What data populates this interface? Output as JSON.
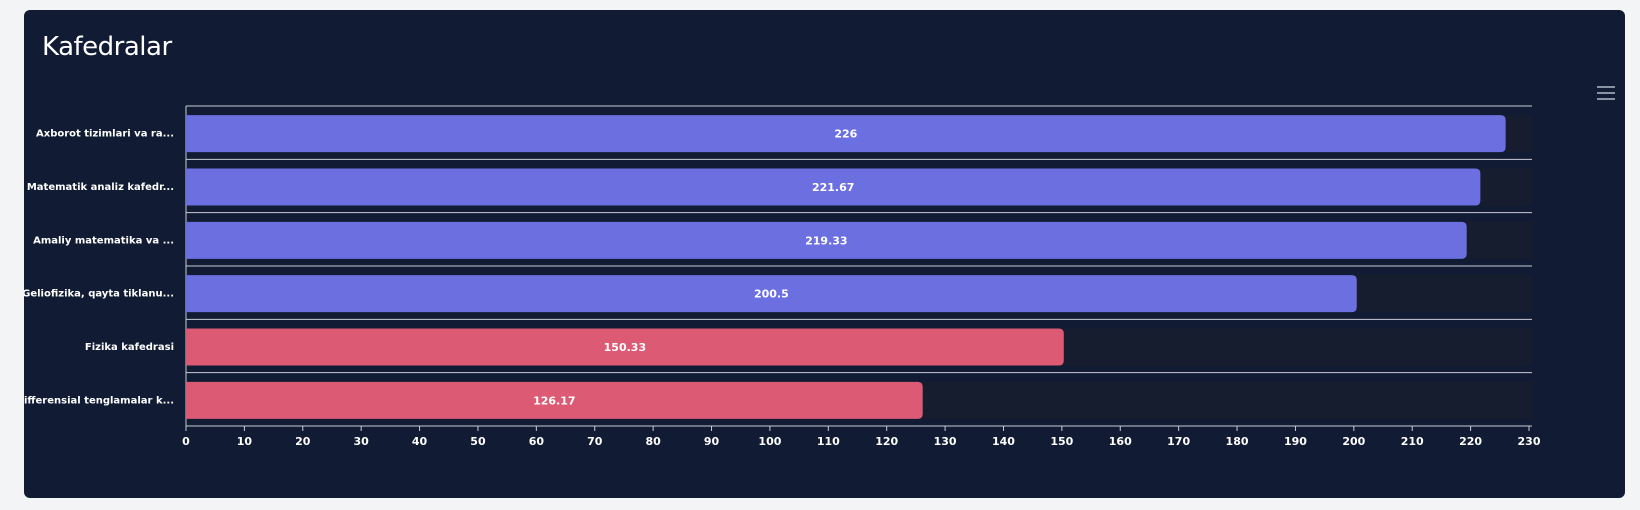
{
  "card": {
    "title": "Kafedralar"
  },
  "toolbar": {
    "menu_icon": "hamburger-menu-icon"
  },
  "colors": {
    "card_bg": "#111b33",
    "track_bg": "#151d2e",
    "blue": "#6c6fe0",
    "red": "#dc5a74",
    "grid": "#c8ccd6"
  },
  "chart_data": {
    "type": "bar",
    "orientation": "horizontal",
    "title": "Kafedralar",
    "categories": [
      "Axborot tizimlari va ra...",
      "Matematik analiz kafedr...",
      "Amaliy matematika va ...",
      "Geliofizika, qayta tiklanu...",
      "Fizika kafedrasi",
      "Differensial tenglamalar k..."
    ],
    "values": [
      226,
      221.67,
      219.33,
      200.5,
      150.33,
      126.17
    ],
    "value_labels": [
      "226",
      "221.67",
      "219.33",
      "200.5",
      "150.33",
      "126.17"
    ],
    "bar_colors": [
      "#6c6fe0",
      "#6c6fe0",
      "#6c6fe0",
      "#6c6fe0",
      "#dc5a74",
      "#dc5a74"
    ],
    "xlim": [
      0,
      230
    ],
    "xticks": [
      0,
      10,
      20,
      30,
      40,
      50,
      60,
      70,
      80,
      90,
      100,
      110,
      120,
      130,
      140,
      150,
      160,
      170,
      180,
      190,
      200,
      210,
      220,
      230
    ],
    "grid": true,
    "legend": "none"
  }
}
